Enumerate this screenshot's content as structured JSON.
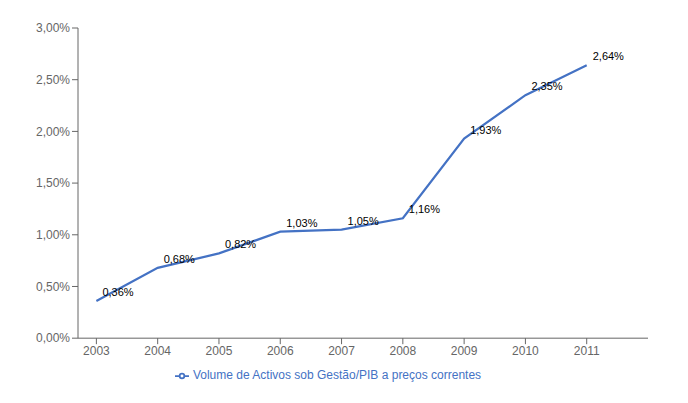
{
  "chart_data": {
    "type": "line",
    "x": [
      2003,
      2004,
      2005,
      2006,
      2007,
      2008,
      2009,
      2010,
      2011
    ],
    "series": [
      {
        "name": "Volume de Activos sob Gestão/PIB a preços correntes",
        "color": "#4472C4",
        "values": [
          0.0036,
          0.0068,
          0.0082,
          0.0103,
          0.0105,
          0.0116,
          0.0193,
          0.0235,
          0.0264
        ],
        "value_labels": [
          "0,36%",
          "0,68%",
          "0,82%",
          "1,03%",
          "1,05%",
          "1,16%",
          "1,93%",
          "2,35%",
          "2,64%"
        ]
      }
    ],
    "xlim": [
      2002.7,
      2012.0
    ],
    "xticks": [
      2003,
      2004,
      2005,
      2006,
      2007,
      2008,
      2009,
      2010,
      2011
    ],
    "ylim": [
      0,
      0.03
    ],
    "yticks": [
      {
        "value": 0.0,
        "label": "0,00%"
      },
      {
        "value": 0.005,
        "label": "0,50%"
      },
      {
        "value": 0.01,
        "label": "1,00%"
      },
      {
        "value": 0.015,
        "label": "1,50%"
      },
      {
        "value": 0.02,
        "label": "2,00%"
      },
      {
        "value": 0.025,
        "label": "2,50%"
      },
      {
        "value": 0.03,
        "label": "3,00%"
      }
    ],
    "grid": false,
    "legend": "bottom",
    "data_labels": true
  }
}
